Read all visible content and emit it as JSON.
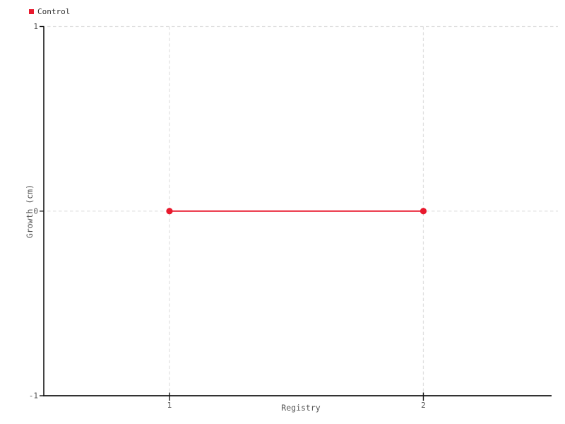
{
  "chart_data": {
    "type": "line",
    "xlabel": "Registry",
    "ylabel": "Growth (cm)",
    "series": [
      {
        "name": "Control",
        "color": "#e8192d",
        "x": [
          1,
          2
        ],
        "y": [
          0,
          0
        ]
      }
    ],
    "xticks": [
      "1",
      "2"
    ],
    "xtick_values": [
      1,
      2
    ],
    "yticks": [
      "-1",
      "0",
      "1"
    ],
    "ytick_values": [
      -1,
      0,
      1
    ],
    "xlim": [
      0.505,
      2.53
    ],
    "ylim": [
      -1,
      1
    ],
    "grid": "dashed",
    "legend_position": "top-left",
    "marker": "circle"
  },
  "style": {
    "background": "#ffffff",
    "grid_color": "#dfdfdf",
    "axis_color": "#161616",
    "tick_label_color": "#555555",
    "axis_label_color": "#555555",
    "legend_text_color": "#333333"
  }
}
